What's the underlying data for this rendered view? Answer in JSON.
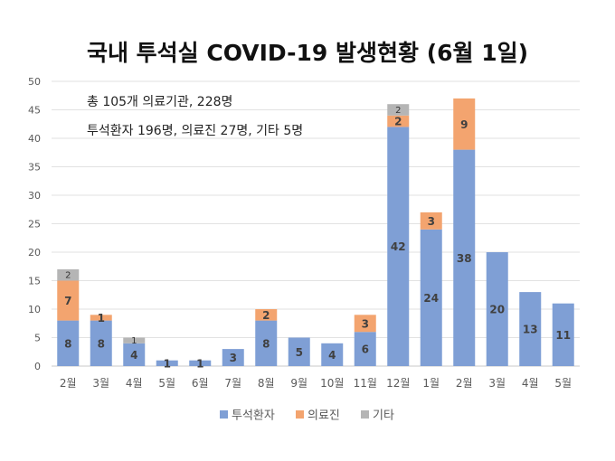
{
  "chart_data": {
    "type": "bar",
    "stacked": true,
    "title": "국내 투석실 COVID-19 발생현황 (6월 1일)",
    "annotations": [
      "총 105개 의료기관, 228명",
      "투석환자 196명, 의료진 27명, 기타 5명"
    ],
    "categories": [
      "2월",
      "3월",
      "4월",
      "5월",
      "6월",
      "7월",
      "8월",
      "9월",
      "10월",
      "11월",
      "12월",
      "1월",
      "2월",
      "3월",
      "4월",
      "5월"
    ],
    "series": [
      {
        "name": "투석환자",
        "color": "#7f9fd5",
        "values": [
          8,
          8,
          4,
          1,
          1,
          3,
          8,
          5,
          4,
          6,
          42,
          24,
          38,
          20,
          13,
          11
        ]
      },
      {
        "name": "의료진",
        "color": "#f3a46f",
        "values": [
          7,
          1,
          0,
          0,
          0,
          0,
          2,
          0,
          0,
          3,
          2,
          3,
          9,
          0,
          0,
          0
        ]
      },
      {
        "name": "기타",
        "color": "#b5b5b5",
        "values": [
          2,
          0,
          1,
          0,
          0,
          0,
          0,
          0,
          0,
          0,
          2,
          0,
          0,
          0,
          0,
          0
        ]
      }
    ],
    "ylim": [
      0,
      50
    ],
    "yticks": [
      0,
      5,
      10,
      15,
      20,
      25,
      30,
      35,
      40,
      45,
      50
    ],
    "grid": true,
    "legend": "bottom",
    "xlabel": "",
    "ylabel": ""
  }
}
